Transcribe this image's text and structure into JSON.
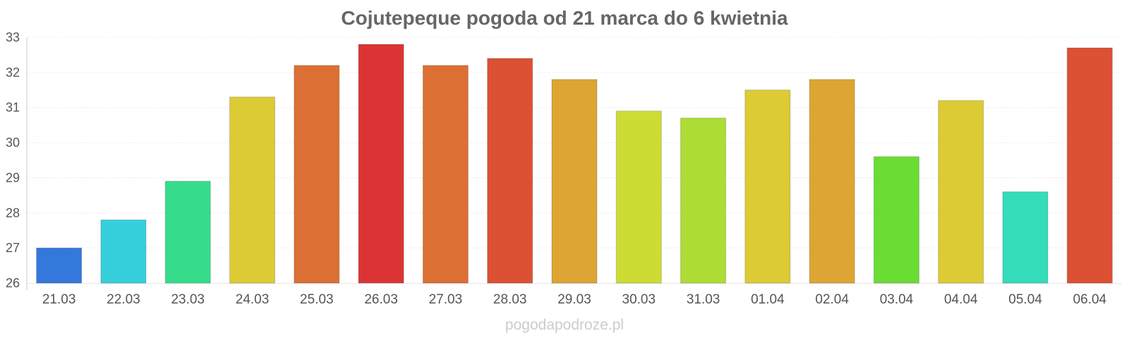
{
  "chart_data": {
    "type": "bar",
    "title": "Cojutepeque pogoda od 21 marca do 6 kwietnia",
    "xlabel": "",
    "ylabel": "",
    "ylim": [
      26,
      33
    ],
    "yticks": [
      26,
      27,
      28,
      29,
      30,
      31,
      32,
      33
    ],
    "grid": true,
    "categories": [
      "21.03",
      "22.03",
      "23.03",
      "24.03",
      "25.03",
      "26.03",
      "27.03",
      "28.03",
      "29.03",
      "30.03",
      "31.03",
      "01.04",
      "02.04",
      "03.04",
      "04.04",
      "05.04",
      "06.04"
    ],
    "values": [
      27.0,
      27.8,
      28.9,
      31.3,
      32.2,
      32.8,
      32.2,
      32.4,
      31.8,
      30.9,
      30.7,
      31.5,
      31.8,
      29.6,
      31.2,
      28.6,
      32.7
    ],
    "colors": [
      "#3478dc",
      "#36cfdc",
      "#36dc8a",
      "#dccb34",
      "#dc7034",
      "#dc3434",
      "#dc7034",
      "#dc5034",
      "#dca534",
      "#cddc34",
      "#addc34",
      "#dccb34",
      "#dca534",
      "#6adc34",
      "#dccb34",
      "#34dcb9",
      "#dc5034"
    ]
  },
  "watermark": "pogodapodroze.pl"
}
